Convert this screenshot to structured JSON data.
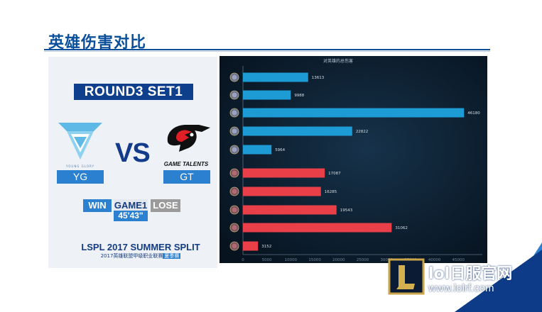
{
  "header": {
    "title": "英雄伤害对比"
  },
  "match": {
    "round": "ROUND3 SET1",
    "vs": "VS",
    "team_left": {
      "name": "YG",
      "logo_caption": "YOUNG GLORY"
    },
    "team_right": {
      "name": "GT",
      "logo_caption": "GAME TALENTS"
    },
    "win_label": "WIN",
    "game_label": "GAME1",
    "lose_label": "LOSE",
    "duration": "45'43\""
  },
  "event": {
    "title": "LSPL 2017 SUMMER SPLIT",
    "subtitle": "2017英雄联盟甲级职业联赛",
    "subtitle_tag": "夏季赛"
  },
  "chart_data": {
    "type": "bar",
    "title": "对英雄的总伤害",
    "orientation": "horizontal",
    "xlim": [
      0,
      50000
    ],
    "xticks": [
      "0",
      "5000",
      "10000",
      "15000",
      "20000",
      "25000",
      "30000",
      "35000",
      "40000",
      "45000"
    ],
    "series": [
      {
        "team": "YG",
        "color": "#1d9bd4",
        "values": [
          13613,
          9988,
          46180,
          22822,
          5964
        ]
      },
      {
        "team": "GT",
        "color": "#e83f48",
        "values": [
          17087,
          16285,
          19543,
          31062,
          3152
        ]
      }
    ],
    "value_labels": [
      "13613",
      "9988",
      "46180",
      "22822",
      "5964",
      "17087",
      "16285",
      "19543",
      "31062",
      "3152"
    ]
  },
  "watermark": {
    "site_name": "lol日服官网",
    "site_url": "www.lolrf.com"
  },
  "colors": {
    "primary": "#0b4f9a",
    "accent": "#2b80cf",
    "chart_bg": "#07131f",
    "bar_blue": "#1d9bd4",
    "bar_red": "#e83f48"
  }
}
